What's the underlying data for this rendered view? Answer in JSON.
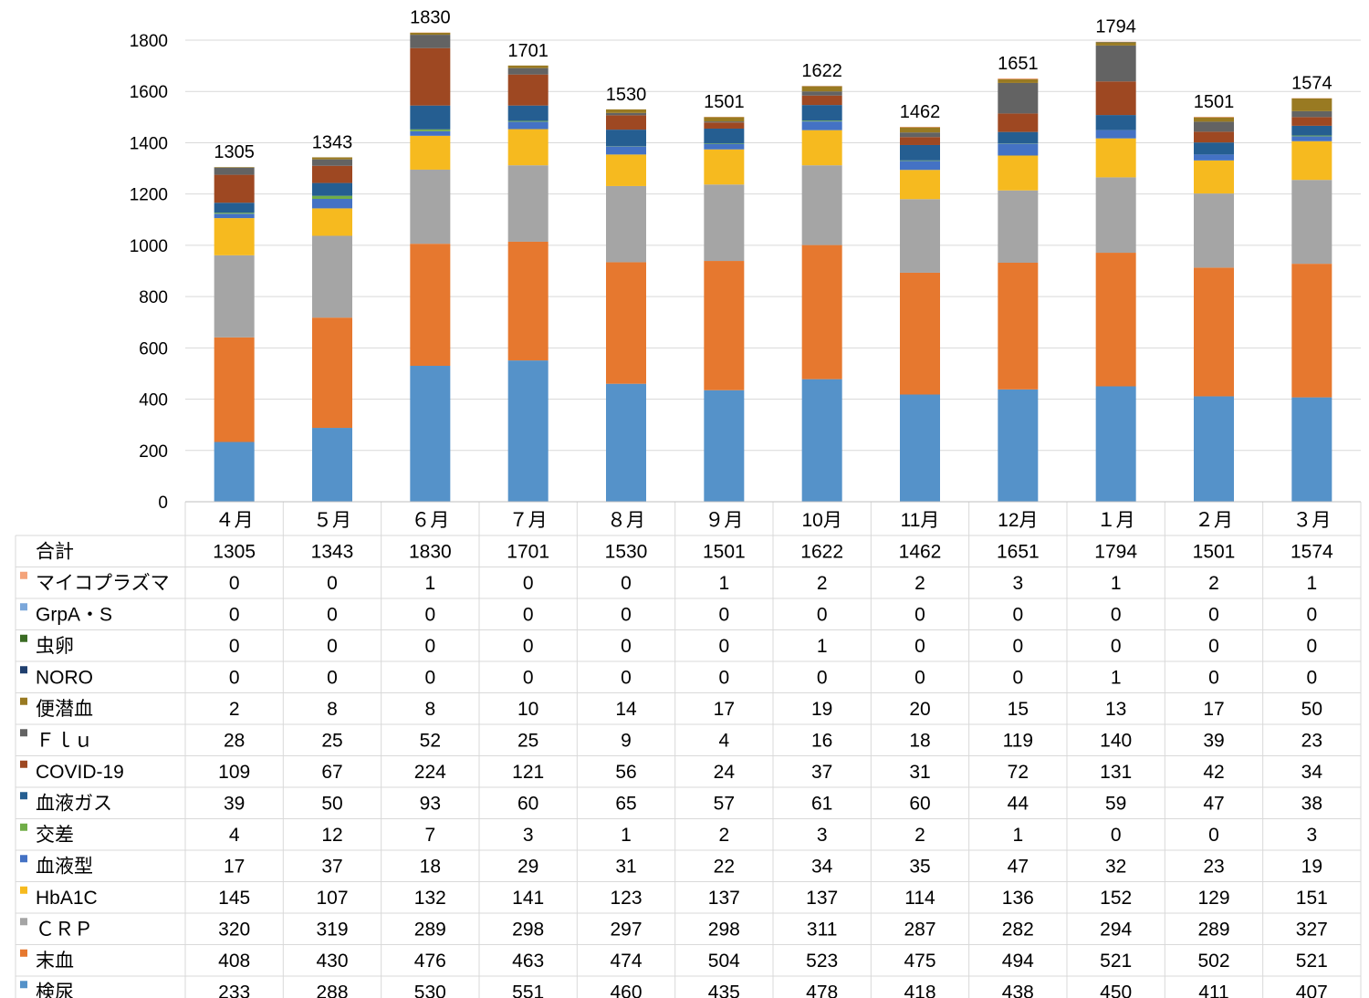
{
  "chart_data": {
    "type": "bar",
    "stacked": true,
    "categories": [
      "４月",
      "５月",
      "６月",
      "７月",
      "８月",
      "９月",
      "10月",
      "11月",
      "12月",
      "１月",
      "２月",
      "３月"
    ],
    "ylim": [
      0,
      1800
    ],
    "yticks": [
      0,
      200,
      400,
      600,
      800,
      1000,
      1200,
      1400,
      1600,
      1800
    ],
    "grid": true,
    "legend_placement": "left-in-table",
    "totals": {
      "name": "合計",
      "values": [
        1305,
        1343,
        1830,
        1701,
        1530,
        1501,
        1622,
        1462,
        1651,
        1794,
        1501,
        1574
      ]
    },
    "series": [
      {
        "name": "検尿",
        "color": "#5592C9",
        "values": [
          233,
          288,
          530,
          551,
          460,
          435,
          478,
          418,
          438,
          450,
          411,
          407
        ]
      },
      {
        "name": "末血",
        "color": "#E6782F",
        "values": [
          408,
          430,
          476,
          463,
          474,
          504,
          523,
          475,
          494,
          521,
          502,
          521
        ]
      },
      {
        "name": "ＣＲＰ",
        "color": "#A5A5A5",
        "values": [
          320,
          319,
          289,
          298,
          297,
          298,
          311,
          287,
          282,
          294,
          289,
          327
        ]
      },
      {
        "name": "HbA1C",
        "color": "#F6BA1F",
        "values": [
          145,
          107,
          132,
          141,
          123,
          137,
          137,
          114,
          136,
          152,
          129,
          151
        ]
      },
      {
        "name": "血液型",
        "color": "#4472C4",
        "values": [
          17,
          37,
          18,
          29,
          31,
          22,
          34,
          35,
          47,
          32,
          23,
          19
        ]
      },
      {
        "name": "交差",
        "color": "#70AD47",
        "values": [
          4,
          12,
          7,
          3,
          1,
          2,
          3,
          2,
          1,
          0,
          0,
          3
        ]
      },
      {
        "name": "血液ガス",
        "color": "#255E91",
        "values": [
          39,
          50,
          93,
          60,
          65,
          57,
          61,
          60,
          44,
          59,
          47,
          38
        ]
      },
      {
        "name": "COVID-19",
        "color": "#9E4822",
        "values": [
          109,
          67,
          224,
          121,
          56,
          24,
          37,
          31,
          72,
          131,
          42,
          34
        ]
      },
      {
        "name": "Ｆｌｕ",
        "color": "#636363",
        "values": [
          28,
          25,
          52,
          25,
          9,
          4,
          16,
          18,
          119,
          140,
          39,
          23
        ]
      },
      {
        "name": "便潜血",
        "color": "#997A22",
        "values": [
          2,
          8,
          8,
          10,
          14,
          17,
          19,
          20,
          15,
          13,
          17,
          50
        ]
      },
      {
        "name": "NORO",
        "color": "#1F3F6E",
        "values": [
          0,
          0,
          0,
          0,
          0,
          0,
          0,
          0,
          0,
          1,
          0,
          0
        ]
      },
      {
        "name": "虫卵",
        "color": "#3A6B24",
        "values": [
          0,
          0,
          0,
          0,
          0,
          0,
          1,
          0,
          0,
          0,
          0,
          0
        ]
      },
      {
        "name": "GrpA・S",
        "color": "#7BA7DA",
        "values": [
          0,
          0,
          0,
          0,
          0,
          0,
          0,
          0,
          0,
          0,
          0,
          0
        ]
      },
      {
        "name": "マイコプラズマ",
        "color": "#F4A37A",
        "values": [
          0,
          0,
          1,
          0,
          0,
          1,
          2,
          2,
          3,
          1,
          2,
          1
        ]
      }
    ]
  }
}
